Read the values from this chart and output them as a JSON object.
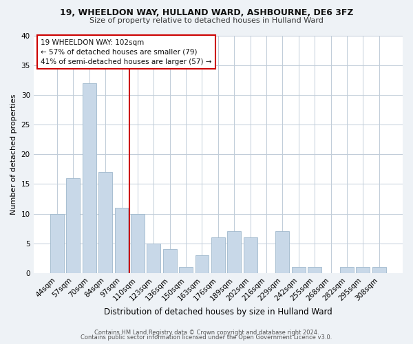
{
  "title": "19, WHEELDON WAY, HULLAND WARD, ASHBOURNE, DE6 3FZ",
  "subtitle": "Size of property relative to detached houses in Hulland Ward",
  "xlabel": "Distribution of detached houses by size in Hulland Ward",
  "ylabel": "Number of detached properties",
  "bar_labels": [
    "44sqm",
    "57sqm",
    "70sqm",
    "84sqm",
    "97sqm",
    "110sqm",
    "123sqm",
    "136sqm",
    "150sqm",
    "163sqm",
    "176sqm",
    "189sqm",
    "202sqm",
    "216sqm",
    "229sqm",
    "242sqm",
    "255sqm",
    "268sqm",
    "282sqm",
    "295sqm",
    "308sqm"
  ],
  "bar_values": [
    10,
    16,
    32,
    17,
    11,
    10,
    5,
    4,
    1,
    3,
    6,
    7,
    6,
    0,
    7,
    1,
    1,
    0,
    1,
    1,
    1
  ],
  "bar_color": "#c8d8e8",
  "bar_edgecolor": "#a0b8cc",
  "vline_x": 4.5,
  "vline_color": "#cc0000",
  "annotation_text": "19 WHEELDON WAY: 102sqm\n← 57% of detached houses are smaller (79)\n41% of semi-detached houses are larger (57) →",
  "annotation_box_edgecolor": "#cc0000",
  "ylim": [
    0,
    40
  ],
  "yticks": [
    0,
    5,
    10,
    15,
    20,
    25,
    30,
    35,
    40
  ],
  "footer1": "Contains HM Land Registry data © Crown copyright and database right 2024.",
  "footer2": "Contains public sector information licensed under the Open Government Licence v3.0.",
  "bg_color": "#eef2f6",
  "plot_bg_color": "#ffffff",
  "grid_color": "#c0ccd8"
}
